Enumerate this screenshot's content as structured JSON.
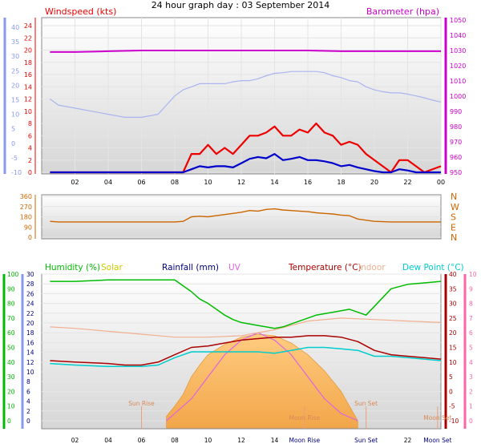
{
  "title": "24 hour graph day : 03 September 2014",
  "colors": {
    "wind": "#ee0000",
    "gust": "#ee0000",
    "avg_wind": "#0000cc",
    "baro": "#cc00cc",
    "direction": "#cc6600",
    "humidity": "#00bb00",
    "solar": "#cccc00",
    "rainfall": "#000080",
    "uv": "#dd66dd",
    "temperature": "#aa0000",
    "indoor": "#f0b090",
    "dewpoint": "#00cccc",
    "left_axis_blue": "#8899ee",
    "right_axis_pink": "#ff66aa"
  },
  "chart_data": [
    {
      "type": "line",
      "panel": "wind-barometer",
      "left_title": "Windspeed (kts)",
      "right_title": "Barometer (hpa)",
      "x_tick_labels": [
        "02",
        "04",
        "06",
        "08",
        "10",
        "12",
        "14",
        "16",
        "18",
        "20",
        "22",
        "00"
      ],
      "x_tick_hours": [
        2,
        4,
        6,
        8,
        10,
        12,
        14,
        16,
        18,
        20,
        22,
        24
      ],
      "left_axis_ticks": [
        "24",
        "22",
        "20",
        "18",
        "16",
        "14",
        "12",
        "10",
        "8",
        "6",
        "4",
        "2",
        "0"
      ],
      "left_outer_axis_ticks": [
        "40",
        "35",
        "30",
        "25",
        "20",
        "15",
        "10",
        "5",
        "0",
        "-5",
        "-10"
      ],
      "right_axis_ticks": [
        "1050",
        "1040",
        "1030",
        "1020",
        "1010",
        "1000",
        "990",
        "980",
        "970",
        "960",
        "950"
      ],
      "ylim_left": [
        0,
        25
      ],
      "ylim_right": [
        950,
        1050
      ],
      "series": [
        {
          "name": "Barometer (hpa)",
          "x": [
            0.5,
            2,
            4,
            6,
            8,
            10,
            12,
            14,
            16,
            18,
            20,
            22,
            24
          ],
          "y": [
            1029,
            1029,
            1029.5,
            1030,
            1030,
            1030,
            1030,
            1030,
            1030,
            1029.5,
            1029.5,
            1029.5,
            1029.5
          ]
        },
        {
          "x": [
            0.5,
            1,
            2,
            3,
            4,
            5,
            6,
            7,
            7.5,
            8,
            8.5,
            9,
            9.5,
            10,
            10.5,
            11,
            11.5,
            12,
            12.5,
            13,
            13.5,
            14,
            14.5,
            15,
            15.5,
            16,
            16.5,
            17,
            17.5,
            18,
            18.5,
            19,
            19.5,
            20,
            20.5,
            21,
            21.5,
            22,
            22.5,
            23,
            23.5,
            24
          ],
          "y": [
            12,
            11,
            10.5,
            10,
            9.5,
            9,
            9,
            9.5,
            11,
            12.5,
            13.5,
            14,
            14.5,
            14.5,
            14.5,
            14.5,
            14.8,
            15,
            15,
            15.3,
            15.8,
            16.2,
            16.3,
            16.5,
            16.5,
            16.5,
            16.5,
            16.3,
            15.8,
            15.5,
            15,
            14.8,
            14,
            13.5,
            13.2,
            13,
            13,
            12.8,
            12.5,
            12.2,
            11.8,
            11.5
          ]
        },
        {
          "x": [
            0.5,
            8.5,
            9,
            9.5,
            10,
            10.5,
            11,
            11.5,
            12,
            12.5,
            13,
            13.5,
            14,
            14.5,
            15,
            15.5,
            16,
            16.5,
            17,
            17.5,
            18,
            18.5,
            19,
            19.5,
            20,
            20.5,
            21,
            21.5,
            22,
            22.5,
            23,
            24
          ],
          "y": [
            0,
            0,
            3,
            3,
            4.5,
            3,
            4,
            3,
            4.5,
            6,
            6,
            6.5,
            7.5,
            6,
            6,
            7,
            6.5,
            8,
            6.5,
            6,
            4.5,
            5,
            4.5,
            3,
            2,
            1,
            0,
            2,
            2,
            1,
            0,
            1
          ]
        },
        {
          "x": [
            0.5,
            8.5,
            9,
            9.5,
            10,
            10.5,
            11,
            11.5,
            12,
            12.5,
            13,
            13.5,
            14,
            14.5,
            15,
            15.5,
            16,
            16.5,
            17,
            17.5,
            18,
            18.5,
            19,
            19.5,
            20,
            20.5,
            21,
            21.5,
            22,
            22.5,
            23,
            24
          ],
          "y": [
            0,
            0,
            0.5,
            1,
            0.8,
            1,
            1,
            0.8,
            1.5,
            2.2,
            2.5,
            2.3,
            3,
            2,
            2.2,
            2.5,
            2,
            2,
            1.8,
            1.5,
            1,
            1.2,
            0.8,
            0.5,
            0.2,
            0,
            0,
            0.5,
            0.3,
            0,
            0,
            0
          ]
        }
      ]
    },
    {
      "type": "line",
      "panel": "wind-direction",
      "y_axis_ticks": [
        "360",
        "270",
        "180",
        "90",
        "0"
      ],
      "compass_labels": [
        "N",
        "W",
        "S",
        "E",
        "N"
      ],
      "ylim": [
        0,
        360
      ],
      "series": [
        {
          "x": [
            0.5,
            1,
            2,
            4,
            6,
            8,
            8.5,
            9,
            9.5,
            10,
            10.5,
            11,
            11.5,
            12,
            12.5,
            13,
            13.5,
            14,
            14.5,
            15,
            15.5,
            16,
            16.5,
            17,
            17.5,
            18,
            18.5,
            19,
            20,
            21,
            22,
            23,
            24
          ],
          "y": [
            140,
            135,
            135,
            135,
            135,
            135,
            140,
            180,
            185,
            180,
            190,
            200,
            210,
            220,
            235,
            230,
            245,
            250,
            240,
            235,
            230,
            225,
            215,
            210,
            205,
            195,
            190,
            160,
            140,
            135,
            135,
            135,
            135
          ]
        }
      ]
    },
    {
      "type": "line",
      "panel": "humidity-temperature",
      "legend": [
        "Humidity (%)",
        "Solar",
        "Rainfall (mm)",
        "UV",
        "Temperature (°C)",
        "Indoor",
        "Dew Point (°C)"
      ],
      "axis_humidity_ticks": [
        "100",
        "90",
        "80",
        "70",
        "60",
        "50",
        "40",
        "30",
        "20",
        "10",
        "0"
      ],
      "axis_rain_ticks": [
        "30",
        "28",
        "26",
        "24",
        "22",
        "20",
        "18",
        "16",
        "14",
        "12",
        "10",
        "8",
        "6",
        "4",
        "2",
        "0"
      ],
      "axis_temp_ticks": [
        "40",
        "35",
        "30",
        "25",
        "20",
        "15",
        "10",
        "5",
        "0",
        "-5",
        "-10"
      ],
      "axis_uv_ticks": [
        "10",
        "9",
        "8",
        "7",
        "6",
        "5",
        "4",
        "3",
        "2",
        "1",
        "0"
      ],
      "x_tick_labels": [
        "02",
        "04",
        "06",
        "08",
        "10",
        "12",
        "14",
        "Moon Rise",
        "Sun Set",
        "22",
        "Moon Set"
      ],
      "x_tick_hours": [
        2,
        4,
        6,
        8,
        10,
        12,
        14,
        15.8,
        19.5,
        22,
        23.8
      ],
      "ylim_humidity": [
        0,
        100
      ],
      "ylim_temperature": [
        -10,
        40
      ],
      "annotations": [
        "Sun Rise",
        "Sun Set",
        "Moon Rise",
        "Moon Set"
      ],
      "annotation_hours": [
        6,
        19.5,
        15.8,
        23.8
      ],
      "series": [
        {
          "name": "Humidity (%)",
          "x": [
            0.5,
            2,
            4,
            6,
            7,
            8,
            8.5,
            9,
            9.5,
            10,
            10.5,
            11,
            11.5,
            12,
            12.5,
            13,
            13.5,
            14,
            14.5,
            15,
            15.5,
            16,
            16.5,
            17,
            17.5,
            18,
            18.5,
            19,
            19.5,
            20,
            20.5,
            21,
            22,
            23,
            24
          ],
          "y": [
            95,
            95,
            96,
            96,
            96,
            96,
            92,
            88,
            83,
            80,
            76,
            72,
            69,
            67,
            66,
            65,
            64,
            63,
            64,
            66,
            68,
            70,
            72,
            73,
            74,
            75,
            76,
            74,
            72,
            78,
            84,
            90,
            93,
            94,
            95
          ]
        },
        {
          "name": "Temperature (°C)",
          "x": [
            0.5,
            2,
            4,
            5,
            6,
            7,
            8,
            9,
            10,
            11,
            12,
            13,
            14,
            15,
            16,
            17,
            18,
            19,
            20,
            21,
            22,
            23,
            24
          ],
          "y": [
            10.5,
            10,
            9.5,
            9,
            9,
            10,
            12.5,
            15,
            15.5,
            16.5,
            17.5,
            18,
            18.5,
            18.5,
            19,
            19,
            18.5,
            17,
            14,
            12.5,
            12,
            11.5,
            11
          ]
        },
        {
          "name": "Dew Point (°C)",
          "x": [
            0.5,
            2,
            4,
            5,
            6,
            7,
            8,
            9,
            10,
            11,
            12,
            13,
            14,
            15,
            16,
            17,
            18,
            19,
            20,
            21,
            22,
            23,
            24
          ],
          "y": [
            9.5,
            9,
            8.5,
            8.5,
            8.5,
            9,
            11.5,
            13.5,
            13.5,
            13.5,
            13.5,
            13.5,
            13,
            14,
            15,
            15,
            14.5,
            14,
            12,
            12,
            11.5,
            11,
            10.5
          ]
        },
        {
          "name": "Indoor",
          "x": [
            0.5,
            2,
            4,
            6,
            8,
            10,
            12,
            14,
            16,
            18,
            20,
            22,
            24
          ],
          "y": [
            22,
            21.5,
            20.5,
            19.5,
            18.5,
            18.5,
            19,
            21,
            24,
            25,
            24.5,
            24,
            23.5
          ]
        },
        {
          "name": "Solar",
          "x": [
            7.5,
            8,
            8.5,
            9,
            9.5,
            10,
            11,
            12,
            13,
            14,
            15,
            16,
            17,
            18,
            18.5,
            19
          ],
          "y": [
            3,
            10,
            18,
            30,
            38,
            45,
            52,
            57,
            59,
            58,
            53,
            45,
            34,
            20,
            10,
            0
          ]
        },
        {
          "name": "UV",
          "x": [
            7.5,
            8,
            9,
            10,
            11,
            12,
            13,
            14,
            15,
            16,
            17,
            18,
            19
          ],
          "y": [
            0,
            0.5,
            1.5,
            3,
            4.5,
            5.5,
            6,
            5.5,
            4.5,
            3,
            1.5,
            0.5,
            0
          ]
        }
      ]
    }
  ]
}
